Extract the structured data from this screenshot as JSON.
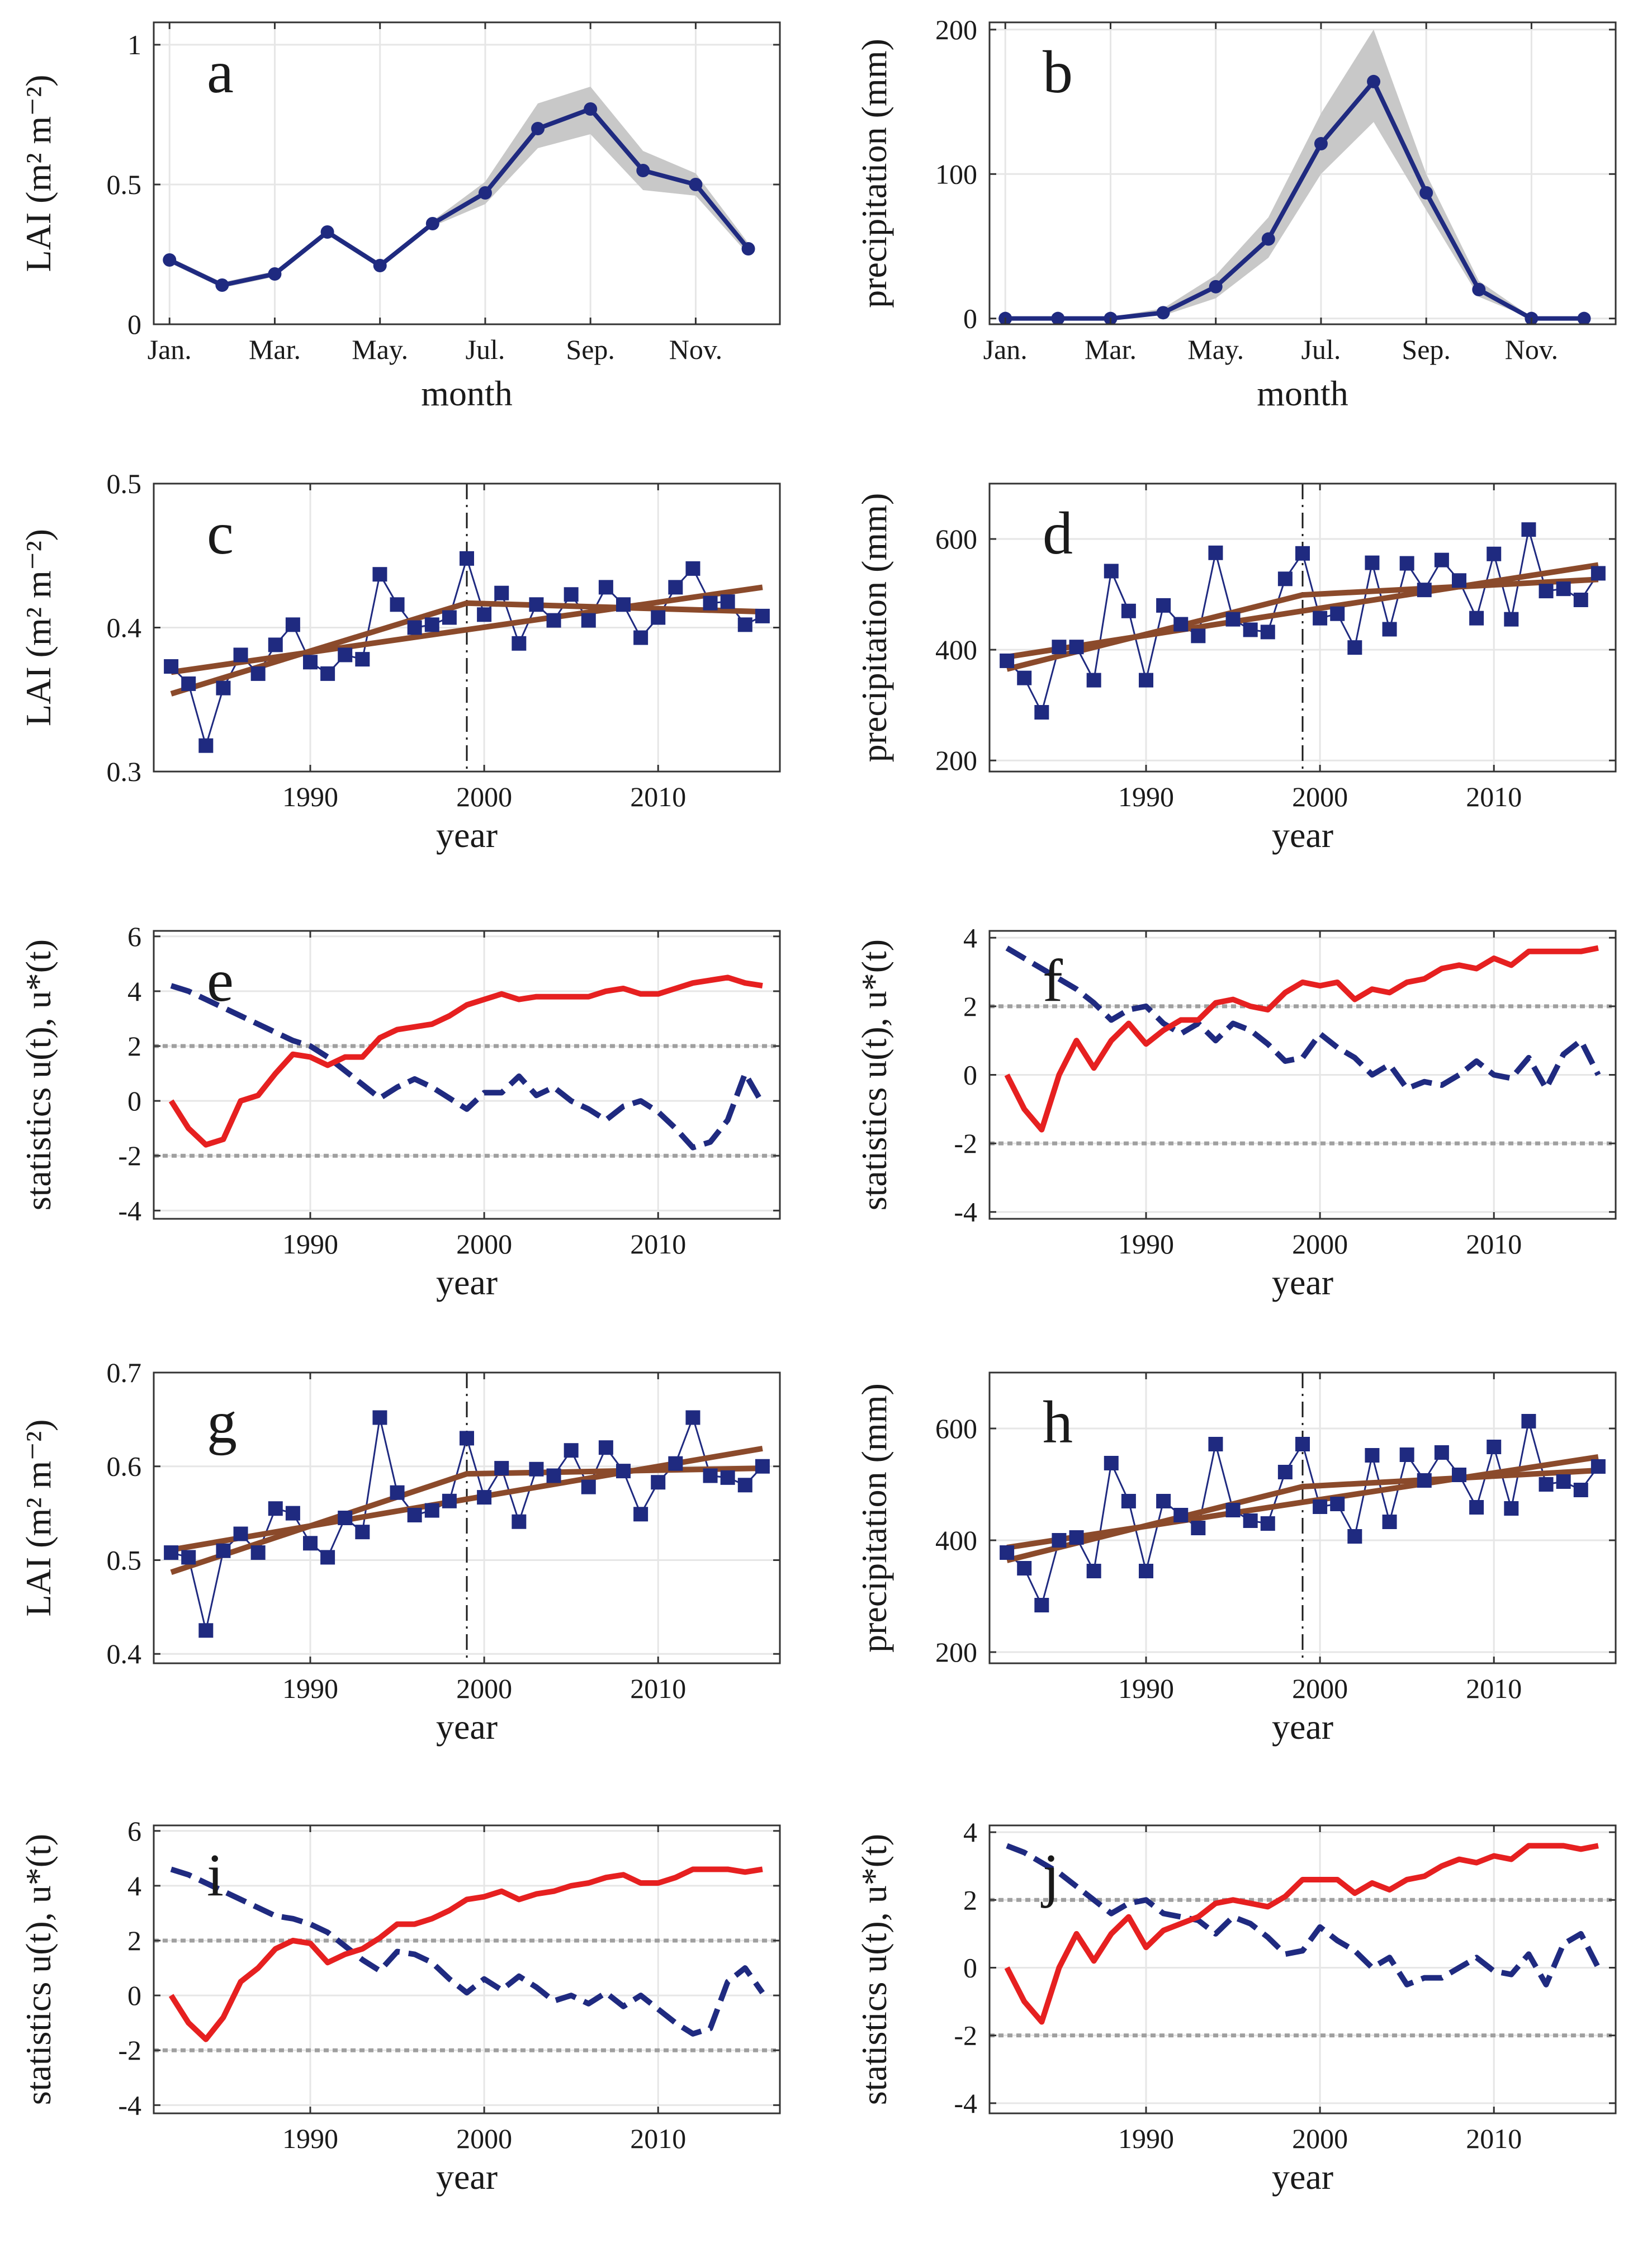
{
  "colors": {
    "series": "#1f2a80",
    "band": "#c8c8c8",
    "trend": "#8b4a2b",
    "forward": "#e62020",
    "backward": "#1f2a80",
    "threshold": "#a0a0a0",
    "grid": "#e6e6e6",
    "changepoint": "#1a1a1a"
  },
  "chart_data": [
    {
      "panel": "a",
      "type": "line",
      "letter": "a",
      "xlabel": "month",
      "ylabel": "LAI (m² m⁻²)",
      "x": [
        1,
        2,
        3,
        4,
        5,
        6,
        7,
        8,
        9,
        10,
        11,
        12
      ],
      "xlim": [
        0.7,
        12.6
      ],
      "xticks": [
        1,
        3,
        5,
        7,
        9,
        11
      ],
      "xtick_labels": [
        "Jan.",
        "Mar.",
        "May.",
        "Jul.",
        "Sep.",
        "Nov."
      ],
      "ylim": [
        0,
        1.08
      ],
      "yticks": [
        0,
        0.5,
        1
      ],
      "ytick_labels": [
        "0",
        "0.5",
        "1"
      ],
      "values": [
        0.23,
        0.14,
        0.18,
        0.33,
        0.21,
        0.36,
        0.47,
        0.7,
        0.77,
        0.55,
        0.5,
        0.27
      ],
      "band_low": [
        0.22,
        0.13,
        0.17,
        0.32,
        0.2,
        0.35,
        0.43,
        0.63,
        0.68,
        0.48,
        0.46,
        0.25
      ],
      "band_high": [
        0.24,
        0.15,
        0.19,
        0.34,
        0.22,
        0.37,
        0.51,
        0.79,
        0.85,
        0.62,
        0.54,
        0.29
      ]
    },
    {
      "panel": "b",
      "type": "line",
      "letter": "b",
      "xlabel": "month",
      "ylabel": "precipitation (mm)",
      "x": [
        1,
        2,
        3,
        4,
        5,
        6,
        7,
        8,
        9,
        10,
        11,
        12
      ],
      "xlim": [
        0.7,
        12.6
      ],
      "xticks": [
        1,
        3,
        5,
        7,
        9,
        11
      ],
      "xtick_labels": [
        "Jan.",
        "Mar.",
        "May.",
        "Jul.",
        "Sep.",
        "Nov."
      ],
      "ylim": [
        -4,
        205
      ],
      "yticks": [
        0,
        100,
        200
      ],
      "ytick_labels": [
        "0",
        "100",
        "200"
      ],
      "values": [
        0,
        0,
        0,
        4,
        22,
        55,
        121,
        164,
        87,
        20,
        0,
        0
      ],
      "band_low": [
        0,
        0,
        0,
        2,
        14,
        42,
        100,
        136,
        75,
        15,
        0,
        0
      ],
      "band_high": [
        1,
        1,
        1,
        7,
        30,
        70,
        142,
        200,
        100,
        26,
        1,
        1
      ]
    },
    {
      "panel": "c",
      "type": "line",
      "letter": "c",
      "xlabel": "year",
      "ylabel": "LAI (m² m⁻²)",
      "x": [
        1982,
        1983,
        1984,
        1985,
        1986,
        1987,
        1988,
        1989,
        1990,
        1991,
        1992,
        1993,
        1994,
        1995,
        1996,
        1997,
        1998,
        1999,
        2000,
        2001,
        2002,
        2003,
        2004,
        2005,
        2006,
        2007,
        2008,
        2009,
        2010,
        2011,
        2012,
        2013,
        2014,
        2015,
        2016
      ],
      "xlim": [
        1981,
        2017
      ],
      "xticks": [
        1990,
        2000,
        2010
      ],
      "xtick_labels": [
        "1990",
        "2000",
        "2010"
      ],
      "ylim": [
        0.3,
        0.5
      ],
      "yticks": [
        0.3,
        0.4,
        0.5
      ],
      "ytick_labels": [
        "0.3",
        "0.4",
        "0.5"
      ],
      "values": [
        0.373,
        0.361,
        0.318,
        0.358,
        0.381,
        0.368,
        0.388,
        0.402,
        0.376,
        0.368,
        0.381,
        0.378,
        0.437,
        0.416,
        0.4,
        0.402,
        0.407,
        0.448,
        0.409,
        0.424,
        0.389,
        0.416,
        0.405,
        0.423,
        0.405,
        0.428,
        0.416,
        0.393,
        0.407,
        0.428,
        0.441,
        0.417,
        0.418,
        0.402,
        0.408
      ],
      "trend_lines": [
        {
          "x": [
            1982,
            2016
          ],
          "y": [
            0.369,
            0.428
          ]
        },
        {
          "x": [
            1982,
            1999,
            2016
          ],
          "y": [
            0.354,
            0.417,
            0.411
          ]
        }
      ],
      "changepoint": 1999
    },
    {
      "panel": "d",
      "type": "line",
      "letter": "d",
      "xlabel": "year",
      "ylabel": "precipitation (mm)",
      "x": [
        1982,
        1983,
        1984,
        1985,
        1986,
        1987,
        1988,
        1989,
        1990,
        1991,
        1992,
        1993,
        1994,
        1995,
        1996,
        1997,
        1998,
        1999,
        2000,
        2001,
        2002,
        2003,
        2004,
        2005,
        2006,
        2007,
        2008,
        2009,
        2010,
        2011,
        2012,
        2013,
        2014,
        2015,
        2016
      ],
      "xlim": [
        1981,
        2017
      ],
      "xticks": [
        1990,
        2000,
        2010
      ],
      "xtick_labels": [
        "1990",
        "2000",
        "2010"
      ],
      "ylim": [
        180,
        700
      ],
      "yticks": [
        200,
        400,
        600
      ],
      "ytick_labels": [
        "200",
        "400",
        "600"
      ],
      "values": [
        380,
        349,
        287,
        405,
        405,
        345,
        542,
        470,
        345,
        480,
        446,
        425,
        575,
        455,
        436,
        432,
        528,
        574,
        457,
        465,
        404,
        557,
        437,
        556,
        508,
        562,
        525,
        457,
        573,
        455,
        617,
        506,
        510,
        490,
        538
      ],
      "trend_lines": [
        {
          "x": [
            1982,
            2016
          ],
          "y": [
            387,
            553
          ]
        },
        {
          "x": [
            1982,
            1999,
            2016
          ],
          "y": [
            365,
            499,
            527
          ]
        }
      ],
      "changepoint": 1999
    },
    {
      "panel": "e",
      "type": "line",
      "letter": "e",
      "xlabel": "year",
      "ylabel": "statistics u(t), u*(t)",
      "x": [
        1982,
        1983,
        1984,
        1985,
        1986,
        1987,
        1988,
        1989,
        1990,
        1991,
        1992,
        1993,
        1994,
        1995,
        1996,
        1997,
        1998,
        1999,
        2000,
        2001,
        2002,
        2003,
        2004,
        2005,
        2006,
        2007,
        2008,
        2009,
        2010,
        2011,
        2012,
        2013,
        2014,
        2015,
        2016
      ],
      "xlim": [
        1981,
        2017
      ],
      "xticks": [
        1990,
        2000,
        2010
      ],
      "xtick_labels": [
        "1990",
        "2000",
        "2010"
      ],
      "ylim": [
        -4.3,
        6.2
      ],
      "yticks": [
        -4,
        -2,
        0,
        2,
        4,
        6
      ],
      "ytick_labels": [
        "-4",
        "-2",
        "0",
        "2",
        "4",
        "6"
      ],
      "thresholds": [
        2,
        -2
      ],
      "forward": [
        0,
        -1.0,
        -1.6,
        -1.4,
        0,
        0.2,
        1.0,
        1.7,
        1.6,
        1.3,
        1.6,
        1.6,
        2.3,
        2.6,
        2.7,
        2.8,
        3.1,
        3.5,
        3.7,
        3.9,
        3.7,
        3.8,
        3.8,
        3.8,
        3.8,
        4.0,
        4.1,
        3.9,
        3.9,
        4.1,
        4.3,
        4.4,
        4.5,
        4.3,
        4.2
      ],
      "backward": [
        4.2,
        4.0,
        3.7,
        3.4,
        3.1,
        2.8,
        2.5,
        2.2,
        2.0,
        1.6,
        1.1,
        0.6,
        0.1,
        0.5,
        0.8,
        0.5,
        0.1,
        -0.3,
        0.3,
        0.3,
        0.9,
        0.2,
        0.5,
        0.0,
        -0.3,
        -0.7,
        -0.2,
        0.0,
        -0.4,
        -1.0,
        -1.7,
        -1.5,
        -0.7,
        1.0,
        -0.1
      ]
    },
    {
      "panel": "f",
      "type": "line",
      "letter": "f",
      "xlabel": "year",
      "ylabel": "statistics u(t), u*(t)",
      "x": [
        1982,
        1983,
        1984,
        1985,
        1986,
        1987,
        1988,
        1989,
        1990,
        1991,
        1992,
        1993,
        1994,
        1995,
        1996,
        1997,
        1998,
        1999,
        2000,
        2001,
        2002,
        2003,
        2004,
        2005,
        2006,
        2007,
        2008,
        2009,
        2010,
        2011,
        2012,
        2013,
        2014,
        2015,
        2016
      ],
      "xlim": [
        1981,
        2017
      ],
      "xticks": [
        1990,
        2000,
        2010
      ],
      "xtick_labels": [
        "1990",
        "2000",
        "2010"
      ],
      "ylim": [
        -4.2,
        4.2
      ],
      "yticks": [
        -4,
        -2,
        0,
        2,
        4
      ],
      "ytick_labels": [
        "-4",
        "-2",
        "0",
        "2",
        "4"
      ],
      "thresholds": [
        2,
        -2
      ],
      "forward": [
        0,
        -1.0,
        -1.6,
        0,
        1.0,
        0.2,
        1.0,
        1.5,
        0.9,
        1.3,
        1.6,
        1.6,
        2.1,
        2.2,
        2.0,
        1.9,
        2.4,
        2.7,
        2.6,
        2.7,
        2.2,
        2.5,
        2.4,
        2.7,
        2.8,
        3.1,
        3.2,
        3.1,
        3.4,
        3.2,
        3.6,
        3.6,
        3.6,
        3.6,
        3.7
      ],
      "backward": [
        3.7,
        3.4,
        3.1,
        2.8,
        2.5,
        2.1,
        1.6,
        1.9,
        2.0,
        1.5,
        1.2,
        1.5,
        1.0,
        1.5,
        1.3,
        0.9,
        0.4,
        0.5,
        1.2,
        0.8,
        0.5,
        0.0,
        0.3,
        -0.4,
        -0.2,
        -0.3,
        0.0,
        0.4,
        0.0,
        -0.1,
        0.5,
        -0.4,
        0.6,
        1.0,
        0.0
      ]
    },
    {
      "panel": "g",
      "type": "line",
      "letter": "g",
      "xlabel": "year",
      "ylabel": "LAI (m² m⁻²)",
      "x": [
        1982,
        1983,
        1984,
        1985,
        1986,
        1987,
        1988,
        1989,
        1990,
        1991,
        1992,
        1993,
        1994,
        1995,
        1996,
        1997,
        1998,
        1999,
        2000,
        2001,
        2002,
        2003,
        2004,
        2005,
        2006,
        2007,
        2008,
        2009,
        2010,
        2011,
        2012,
        2013,
        2014,
        2015,
        2016
      ],
      "xlim": [
        1981,
        2017
      ],
      "xticks": [
        1990,
        2000,
        2010
      ],
      "xtick_labels": [
        "1990",
        "2000",
        "2010"
      ],
      "ylim": [
        0.39,
        0.7
      ],
      "yticks": [
        0.4,
        0.5,
        0.6,
        0.7
      ],
      "ytick_labels": [
        "0.4",
        "0.5",
        "0.6",
        "0.7"
      ],
      "values": [
        0.508,
        0.503,
        0.425,
        0.51,
        0.528,
        0.508,
        0.555,
        0.55,
        0.518,
        0.503,
        0.545,
        0.53,
        0.652,
        0.572,
        0.548,
        0.553,
        0.563,
        0.63,
        0.567,
        0.598,
        0.541,
        0.597,
        0.59,
        0.617,
        0.578,
        0.62,
        0.595,
        0.549,
        0.583,
        0.603,
        0.652,
        0.59,
        0.588,
        0.58,
        0.6
      ],
      "trend_lines": [
        {
          "x": [
            1982,
            2016
          ],
          "y": [
            0.511,
            0.619
          ]
        },
        {
          "x": [
            1982,
            1999,
            2016
          ],
          "y": [
            0.487,
            0.592,
            0.598
          ]
        }
      ],
      "changepoint": 1999
    },
    {
      "panel": "h",
      "type": "line",
      "letter": "h",
      "xlabel": "year",
      "ylabel": "precipitation (mm)",
      "x": [
        1982,
        1983,
        1984,
        1985,
        1986,
        1987,
        1988,
        1989,
        1990,
        1991,
        1992,
        1993,
        1994,
        1995,
        1996,
        1997,
        1998,
        1999,
        2000,
        2001,
        2002,
        2003,
        2004,
        2005,
        2006,
        2007,
        2008,
        2009,
        2010,
        2011,
        2012,
        2013,
        2014,
        2015,
        2016
      ],
      "xlim": [
        1981,
        2017
      ],
      "xticks": [
        1990,
        2000,
        2010
      ],
      "xtick_labels": [
        "1990",
        "2000",
        "2010"
      ],
      "ylim": [
        180,
        700
      ],
      "yticks": [
        200,
        400,
        600
      ],
      "ytick_labels": [
        "200",
        "400",
        "600"
      ],
      "values": [
        378,
        350,
        284,
        400,
        405,
        345,
        538,
        470,
        345,
        470,
        445,
        422,
        572,
        454,
        435,
        430,
        522,
        572,
        460,
        465,
        407,
        552,
        433,
        553,
        507,
        557,
        517,
        459,
        567,
        457,
        613,
        500,
        505,
        490,
        532
      ],
      "trend_lines": [
        {
          "x": [
            1982,
            2016
          ],
          "y": [
            387,
            549
          ]
        },
        {
          "x": [
            1982,
            1999,
            2016
          ],
          "y": [
            364,
            496,
            525
          ]
        }
      ],
      "changepoint": 1999
    },
    {
      "panel": "i",
      "type": "line",
      "letter": "i",
      "xlabel": "year",
      "ylabel": "statistics u(t), u*(t)",
      "x": [
        1982,
        1983,
        1984,
        1985,
        1986,
        1987,
        1988,
        1989,
        1990,
        1991,
        1992,
        1993,
        1994,
        1995,
        1996,
        1997,
        1998,
        1999,
        2000,
        2001,
        2002,
        2003,
        2004,
        2005,
        2006,
        2007,
        2008,
        2009,
        2010,
        2011,
        2012,
        2013,
        2014,
        2015,
        2016
      ],
      "xlim": [
        1981,
        2017
      ],
      "xticks": [
        1990,
        2000,
        2010
      ],
      "xtick_labels": [
        "1990",
        "2000",
        "2010"
      ],
      "ylim": [
        -4.3,
        6.2
      ],
      "yticks": [
        -4,
        -2,
        0,
        2,
        4,
        6
      ],
      "ytick_labels": [
        "-4",
        "-2",
        "0",
        "2",
        "4",
        "6"
      ],
      "thresholds": [
        2,
        -2
      ],
      "forward": [
        0,
        -1.0,
        -1.6,
        -0.8,
        0.5,
        1.0,
        1.7,
        2.0,
        1.9,
        1.2,
        1.5,
        1.7,
        2.1,
        2.6,
        2.6,
        2.8,
        3.1,
        3.5,
        3.6,
        3.8,
        3.5,
        3.7,
        3.8,
        4.0,
        4.1,
        4.3,
        4.4,
        4.1,
        4.1,
        4.3,
        4.6,
        4.6,
        4.6,
        4.5,
        4.6
      ],
      "backward": [
        4.6,
        4.4,
        4.1,
        3.8,
        3.5,
        3.2,
        2.9,
        2.8,
        2.6,
        2.3,
        1.8,
        1.3,
        0.9,
        1.6,
        1.5,
        1.2,
        0.6,
        0.1,
        0.6,
        0.2,
        0.7,
        0.3,
        -0.2,
        0.0,
        -0.3,
        0.1,
        -0.4,
        0.0,
        -0.5,
        -1.0,
        -1.4,
        -1.2,
        0.5,
        1.0,
        0.1
      ]
    },
    {
      "panel": "j",
      "type": "line",
      "letter": "j",
      "xlabel": "year",
      "ylabel": "statistics u(t), u*(t)",
      "x": [
        1982,
        1983,
        1984,
        1985,
        1986,
        1987,
        1988,
        1989,
        1990,
        1991,
        1992,
        1993,
        1994,
        1995,
        1996,
        1997,
        1998,
        1999,
        2000,
        2001,
        2002,
        2003,
        2004,
        2005,
        2006,
        2007,
        2008,
        2009,
        2010,
        2011,
        2012,
        2013,
        2014,
        2015,
        2016
      ],
      "xlim": [
        1981,
        2017
      ],
      "xticks": [
        1990,
        2000,
        2010
      ],
      "xtick_labels": [
        "1990",
        "2000",
        "2010"
      ],
      "ylim": [
        -4.3,
        4.2
      ],
      "yticks": [
        -4,
        -2,
        0,
        2,
        4
      ],
      "ytick_labels": [
        "-4",
        "-2",
        "0",
        "2",
        "4"
      ],
      "thresholds": [
        2,
        -2
      ],
      "forward": [
        0,
        -1.0,
        -1.6,
        0,
        1.0,
        0.2,
        1.0,
        1.5,
        0.6,
        1.1,
        1.3,
        1.5,
        1.9,
        2.0,
        1.9,
        1.8,
        2.1,
        2.6,
        2.6,
        2.6,
        2.2,
        2.5,
        2.3,
        2.6,
        2.7,
        3.0,
        3.2,
        3.1,
        3.3,
        3.2,
        3.6,
        3.6,
        3.6,
        3.5,
        3.6
      ],
      "backward": [
        3.6,
        3.4,
        3.1,
        2.8,
        2.4,
        2.0,
        1.6,
        1.9,
        2.0,
        1.6,
        1.5,
        1.4,
        1.0,
        1.5,
        1.3,
        0.9,
        0.4,
        0.5,
        1.2,
        0.8,
        0.5,
        0.0,
        0.3,
        -0.5,
        -0.3,
        -0.3,
        0.0,
        0.3,
        -0.1,
        -0.2,
        0.4,
        -0.5,
        0.7,
        1.0,
        0.0
      ]
    }
  ]
}
